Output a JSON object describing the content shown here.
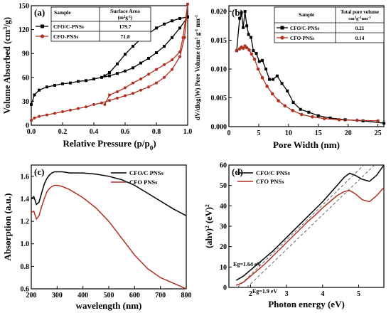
{
  "chart_data": [
    {
      "panel": "(a)",
      "type": "line",
      "xlabel": "Relative Pressure (p/p",
      "xlabel_sub": "0",
      "xlabel_close": ")",
      "ylabel": "Volume Absorbed (cm",
      "ylabel_sup": "3",
      "ylabel_rest": "/g)",
      "xlim": [
        0,
        1.0
      ],
      "ylim": [
        0,
        150
      ],
      "xticks": [
        "0.0",
        "0.2",
        "0.4",
        "0.6",
        "0.8",
        "1.0"
      ],
      "yticks": [
        "0",
        "30",
        "60",
        "90",
        "120",
        "150"
      ],
      "table": {
        "headers": [
          "Sample",
          "Surface Area"
        ],
        "unit_main": "(m",
        "unit_sup": "2",
        "unit_rest": "g",
        "unit_sup2": "-1",
        "unit_close": ")",
        "rows": [
          {
            "sample": "CFO/C-PNSs",
            "value": "179.7"
          },
          {
            "sample": "CFO-PNSs",
            "value": "71.8"
          }
        ]
      },
      "series": [
        {
          "name": "CFO/C-PNSs",
          "color": "#000000",
          "adsorption": {
            "x": [
              0.0,
              0.02,
              0.05,
              0.1,
              0.15,
              0.2,
              0.25,
              0.3,
              0.35,
              0.4,
              0.45,
              0.5,
              0.55,
              0.6,
              0.65,
              0.7,
              0.75,
              0.8,
              0.85,
              0.9,
              0.95,
              1.0
            ],
            "y": [
              26,
              38,
              44,
              48,
              50,
              52,
              53,
              55,
              56,
              58,
              60,
              62,
              65,
              68,
              72,
              78,
              84,
              91,
              99,
              110,
              122,
              136
            ]
          },
          "desorption": {
            "x": [
              1.0,
              0.95,
              0.9,
              0.85,
              0.8,
              0.75,
              0.7,
              0.65,
              0.6,
              0.55,
              0.5,
              0.47
            ],
            "y": [
              136,
              134,
              131,
              127,
              122,
              115,
              108,
              99,
              89,
              77,
              66,
              62
            ]
          }
        },
        {
          "name": "CFO-PNSs",
          "color": "#b03020",
          "adsorption": {
            "x": [
              0.0,
              0.02,
              0.05,
              0.1,
              0.15,
              0.2,
              0.25,
              0.3,
              0.35,
              0.4,
              0.45,
              0.5,
              0.55,
              0.6,
              0.65,
              0.7,
              0.75,
              0.8,
              0.85,
              0.9,
              0.95,
              0.98,
              1.0
            ],
            "y": [
              6,
              9,
              11,
              13,
              15,
              17,
              19,
              21,
              23,
              26,
              28,
              31,
              34,
              37,
              40,
              44,
              48,
              53,
              60,
              70,
              86,
              110,
              152
            ]
          },
          "desorption": {
            "x": [
              1.0,
              0.97,
              0.95,
              0.9,
              0.85,
              0.8,
              0.75,
              0.7,
              0.65,
              0.6,
              0.55,
              0.5,
              0.47
            ],
            "y": [
              152,
              110,
              92,
              82,
              76,
              70,
              64,
              58,
              53,
              47,
              42,
              38,
              26
            ]
          }
        }
      ]
    },
    {
      "panel": "(b)",
      "type": "line",
      "xlabel": "Pore Width (nm)",
      "ylabel": "dV/dlog(W) Pore Volume (cm",
      "ylabel_sup": "3",
      "ylabel_mid": " g",
      "ylabel_sup2": "-1",
      "ylabel_rest": " nm",
      "ylabel_sup3": "-1",
      "xlim": [
        0,
        26
      ],
      "ylim": [
        0,
        0.021
      ],
      "xticks": [
        "0",
        "5",
        "10",
        "15",
        "20",
        "25"
      ],
      "yticks": [
        "0.000",
        "0.005",
        "0.010",
        "0.015",
        "0.020"
      ],
      "table": {
        "headers": [
          "Sample",
          "Total pore volume"
        ],
        "unit_main": "cm",
        "unit_sup": "3",
        "unit_rest": "g",
        "unit_sup2": "-1",
        "unit_rest2": "nm",
        "unit_sup3": "-1",
        "rows": [
          {
            "sample": "CFO/C-PNSs",
            "value": "0.21"
          },
          {
            "sample": "CFO-PNSs",
            "value": "0.14"
          }
        ]
      },
      "series": [
        {
          "name": "CFO/C-PNSs",
          "color": "#000000",
          "marker": "square",
          "x": [
            1.3,
            1.8,
            2.1,
            2.4,
            2.7,
            3.0,
            3.3,
            3.7,
            4.1,
            4.6,
            5.1,
            5.6,
            6.2,
            6.8,
            7.4,
            8.1,
            8.9,
            9.8,
            10.8,
            12.0,
            13.4,
            15.0,
            17.0,
            19.5,
            22.5,
            26.0
          ],
          "y": [
            0.0132,
            0.0188,
            0.0198,
            0.0172,
            0.02,
            0.0175,
            0.016,
            0.0155,
            0.0132,
            0.0127,
            0.0113,
            0.0115,
            0.01,
            0.0082,
            0.0082,
            0.0088,
            0.0075,
            0.0062,
            0.0042,
            0.003,
            0.0025,
            0.0019,
            0.0015,
            0.0012,
            0.001,
            0.0006
          ]
        },
        {
          "name": "CFO-PNSs",
          "color": "#b03020",
          "marker": "circle",
          "x": [
            1.3,
            1.8,
            2.1,
            2.4,
            2.7,
            3.0,
            3.4,
            3.8,
            4.3,
            4.9,
            5.6,
            6.4,
            7.3,
            8.3,
            9.4,
            10.7,
            12.2,
            14.0,
            16.0,
            18.5,
            21.5,
            25.0
          ],
          "y": [
            0.0132,
            0.0135,
            0.0138,
            0.0136,
            0.014,
            0.0137,
            0.0133,
            0.0126,
            0.0117,
            0.01,
            0.0085,
            0.007,
            0.0057,
            0.0045,
            0.0036,
            0.0028,
            0.0021,
            0.0017,
            0.0014,
            0.0012,
            0.0011,
            0.001
          ]
        }
      ]
    },
    {
      "panel": "(c)",
      "type": "line",
      "xlabel": "wavelength (nm)",
      "ylabel": "Absorption (a.u.)",
      "xlim": [
        200,
        800
      ],
      "ylim": [
        0.6,
        1.7
      ],
      "xticks": [
        "200",
        "300",
        "400",
        "500",
        "600",
        "700",
        "800"
      ],
      "yticks": [
        "0.6",
        "0.8",
        "1.0",
        "1.2",
        "1.4",
        "1.6"
      ],
      "legend": "top-right",
      "series": [
        {
          "name": "CFO/C PNSs",
          "color": "#000000",
          "x": [
            200,
            210,
            220,
            230,
            240,
            250,
            260,
            270,
            280,
            290,
            300,
            320,
            350,
            400,
            450,
            500,
            550,
            600,
            650,
            700,
            750,
            800
          ],
          "y": [
            1.4,
            1.42,
            1.35,
            1.37,
            1.45,
            1.53,
            1.58,
            1.61,
            1.63,
            1.64,
            1.64,
            1.64,
            1.63,
            1.63,
            1.62,
            1.6,
            1.57,
            1.52,
            1.45,
            1.38,
            1.31,
            1.25
          ]
        },
        {
          "name": "CFO PNSs",
          "color": "#b03020",
          "x": [
            200,
            210,
            220,
            230,
            240,
            250,
            260,
            270,
            280,
            290,
            300,
            320,
            350,
            400,
            450,
            500,
            550,
            600,
            650,
            700,
            750,
            800
          ],
          "y": [
            1.28,
            1.29,
            1.22,
            1.25,
            1.33,
            1.4,
            1.46,
            1.49,
            1.51,
            1.52,
            1.52,
            1.51,
            1.48,
            1.41,
            1.32,
            1.2,
            1.05,
            0.9,
            0.78,
            0.7,
            0.65,
            0.6
          ]
        }
      ]
    },
    {
      "panel": "(d)",
      "type": "line",
      "xlabel": "Photon energy (eV)",
      "ylabel": "(ahv)",
      "ylabel_sup": "2",
      "ylabel_rest": " (eV)",
      "ylabel_sup2": "2",
      "xlim": [
        1.4,
        5.7
      ],
      "ylim": [
        0,
        60
      ],
      "xticks": [
        "2",
        "3",
        "4",
        "5"
      ],
      "yticks": [
        "0",
        "10",
        "20",
        "30",
        "40",
        "50",
        "60"
      ],
      "legend": "top-left",
      "annotations": [
        {
          "text": "Eg=1.64 eV",
          "color": "#000000"
        },
        {
          "text": "Eg=1.9 eV",
          "color": "#b03020"
        }
      ],
      "series": [
        {
          "name": "CFO/C PNSs",
          "color": "#000000",
          "x": [
            1.6,
            1.8,
            2.0,
            2.2,
            2.4,
            2.6,
            2.8,
            3.0,
            3.2,
            3.4,
            3.6,
            3.8,
            4.0,
            4.2,
            4.4,
            4.6,
            4.75,
            4.9,
            5.1,
            5.3,
            5.5,
            5.7
          ],
          "y": [
            3.5,
            5.5,
            8.5,
            11.5,
            14.5,
            17.5,
            21.0,
            24.5,
            28.0,
            31.5,
            35.0,
            38.5,
            42.0,
            46.0,
            50.0,
            54.0,
            56.0,
            55.0,
            53.0,
            52.0,
            55.0,
            60.0
          ]
        },
        {
          "name": "CFO PNSs",
          "color": "#b03020",
          "x": [
            1.6,
            1.8,
            2.0,
            2.2,
            2.4,
            2.6,
            2.8,
            3.0,
            3.2,
            3.4,
            3.6,
            3.8,
            4.0,
            4.2,
            4.4,
            4.6,
            4.75,
            4.9,
            5.1,
            5.3,
            5.5,
            5.7
          ],
          "y": [
            1.0,
            2.5,
            5.5,
            8.5,
            11.5,
            15.0,
            18.5,
            22.0,
            25.5,
            29.0,
            32.5,
            35.5,
            39.0,
            42.0,
            45.0,
            47.0,
            47.5,
            46.0,
            43.0,
            42.0,
            45.0,
            49.0
          ]
        }
      ],
      "fits": [
        {
          "color": "#555555",
          "x": [
            1.64,
            5.2
          ],
          "y": [
            0,
            61
          ]
        },
        {
          "color": "#555555",
          "x": [
            1.9,
            5.5
          ],
          "y": [
            0,
            61
          ]
        }
      ]
    }
  ]
}
